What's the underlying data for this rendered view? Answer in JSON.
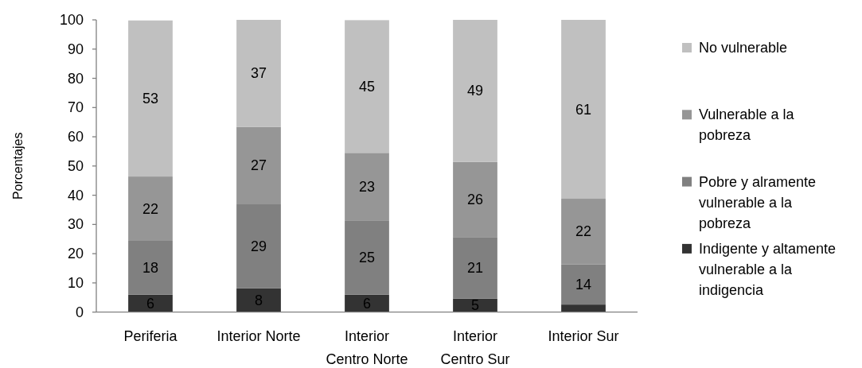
{
  "chart_data": {
    "type": "bar",
    "stacked": true,
    "ylabel": "Porcentajes",
    "categories": [
      "Periferia",
      "Interior Norte",
      "Interior Centro Norte",
      "Interior Centro Sur",
      "Interior Sur"
    ],
    "series": [
      {
        "name": "Indigente y altamente vulnerable a la indigencia",
        "color": "#333333",
        "values": [
          6.0,
          8.2,
          6.0,
          4.6,
          2.6
        ],
        "value_labels": [
          "6",
          "8",
          "6",
          "5",
          null
        ]
      },
      {
        "name": "Pobre y alramente vulnerable a la pobreza",
        "color": "#808080",
        "values": [
          18.4,
          28.7,
          25.4,
          20.9,
          13.8
        ],
        "value_labels": [
          "18",
          "29",
          "25",
          "21",
          "14"
        ]
      },
      {
        "name": "Vulnerable a la pobreza",
        "color": "#969696",
        "values": [
          22.0,
          26.5,
          23.1,
          25.9,
          22.4
        ],
        "value_labels": [
          "22",
          "27",
          "23",
          "26",
          "22"
        ]
      },
      {
        "name": "No vulnerable",
        "color": "#c0c0c0",
        "values": [
          53.4,
          36.6,
          45.4,
          48.6,
          61.2
        ],
        "value_labels": [
          "53",
          "37",
          "45",
          "49",
          "61"
        ]
      }
    ],
    "ylim": [
      0,
      100
    ],
    "yticks": [
      0,
      10,
      20,
      30,
      40,
      50,
      60,
      70,
      80,
      90,
      100
    ],
    "legend": "right"
  }
}
